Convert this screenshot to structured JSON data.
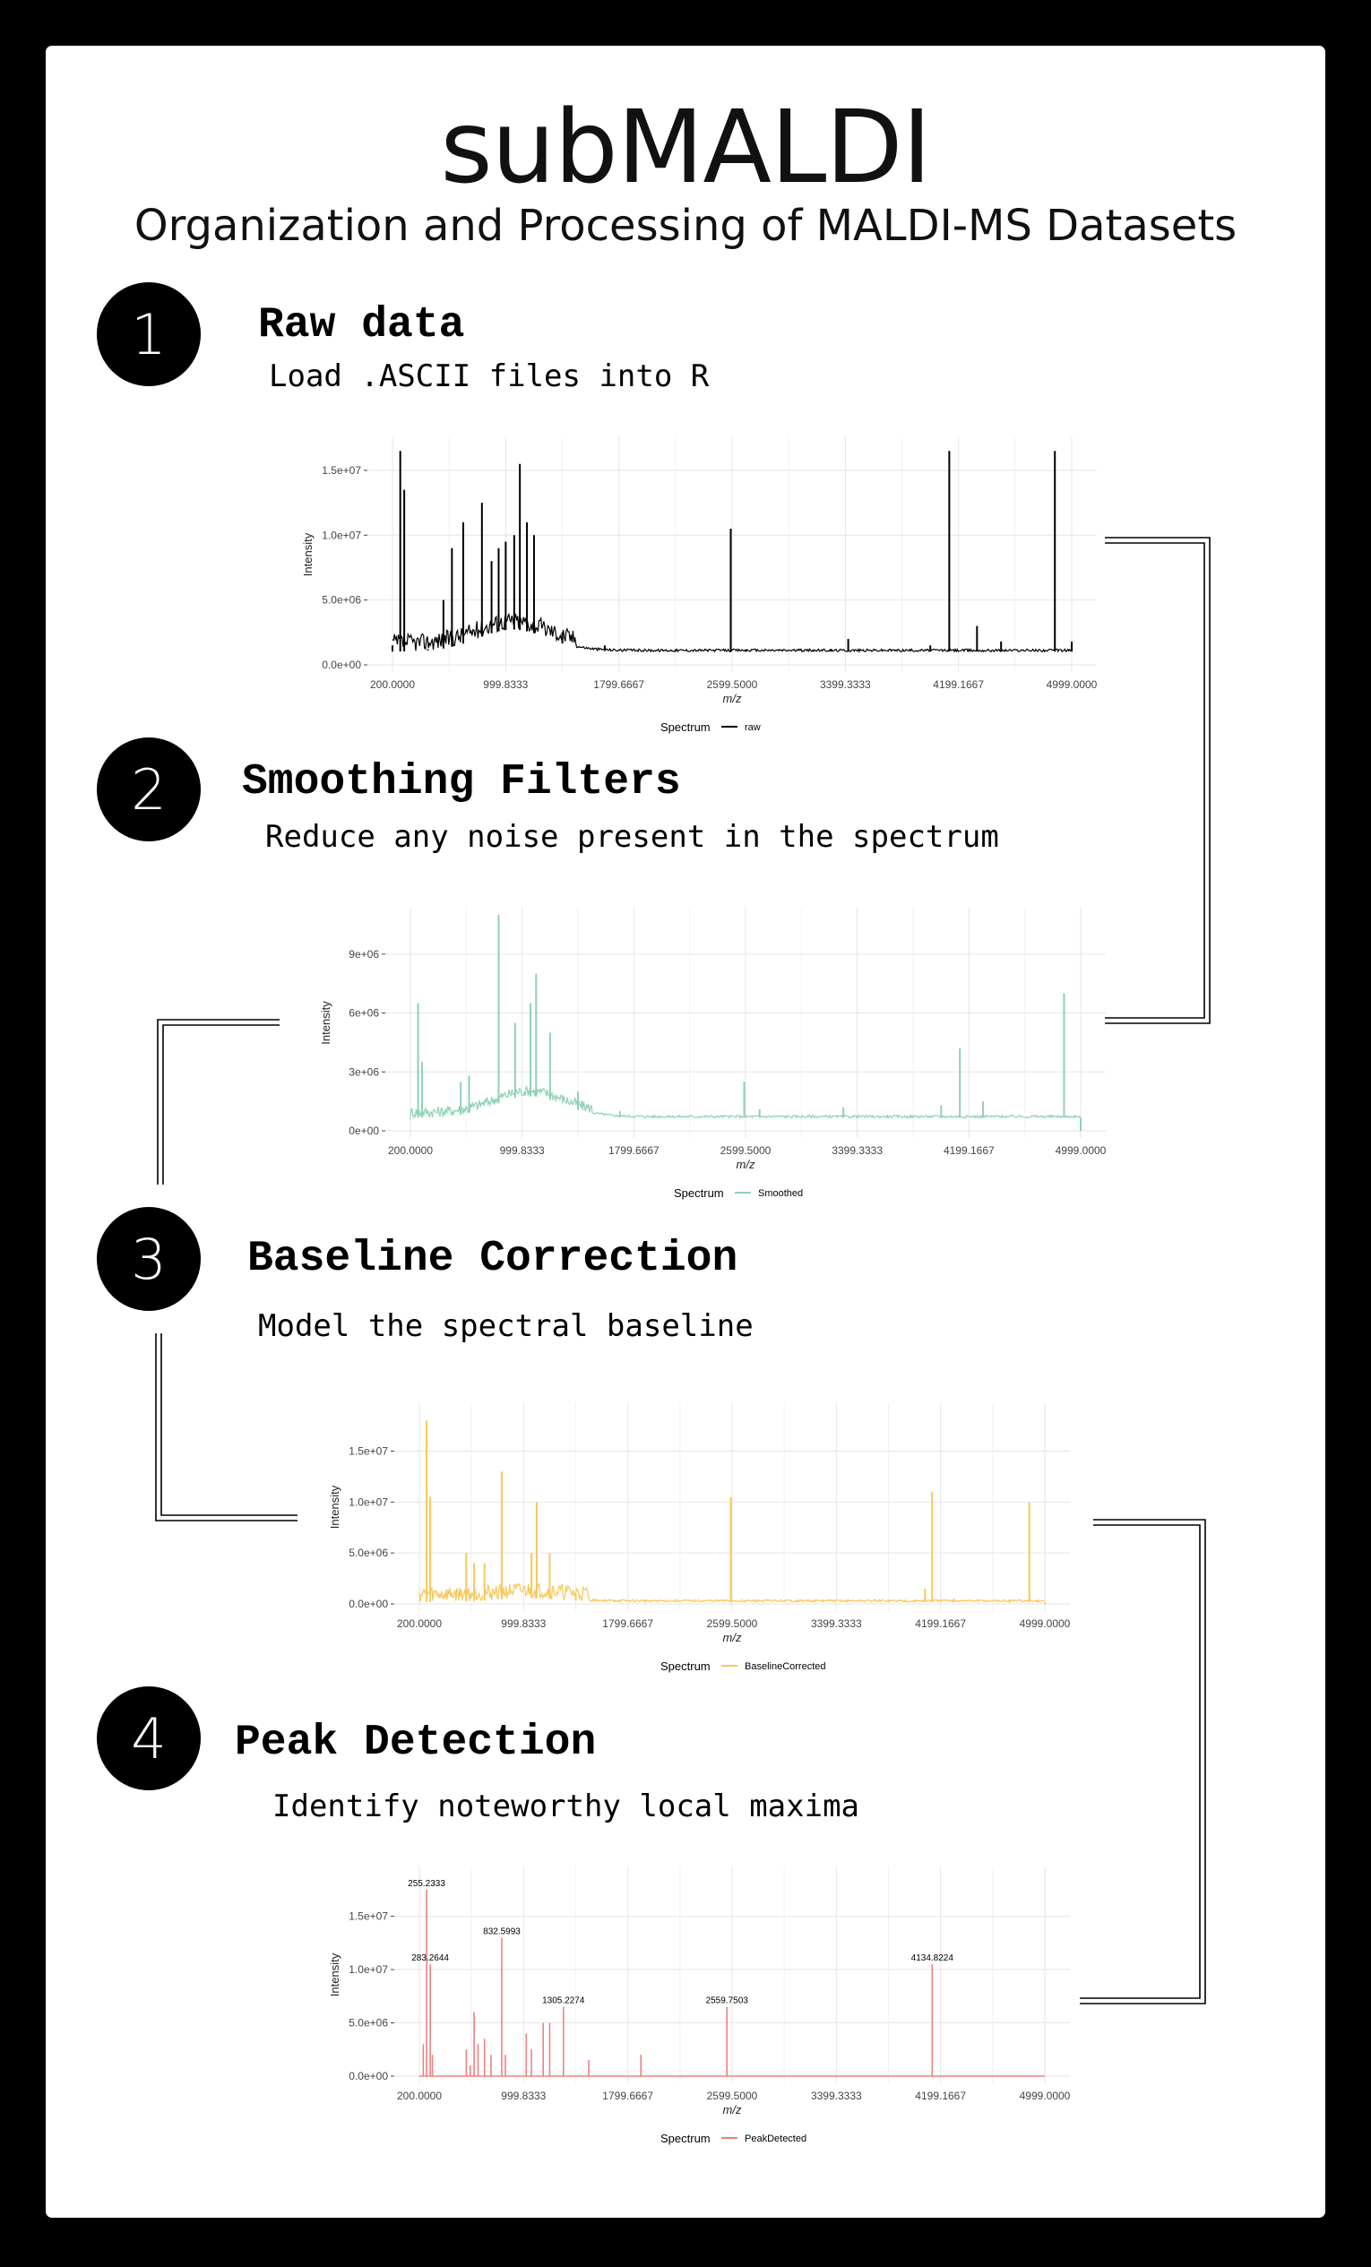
{
  "title": "subMALDI",
  "subtitle": "Organization and Processing of MALDI-MS Datasets",
  "steps": [
    {
      "number": "1",
      "heading": "Raw data",
      "description": "Load .ASCII files into R"
    },
    {
      "number": "2",
      "heading": "Smoothing Filters",
      "description": "Reduce any noise present in the spectrum"
    },
    {
      "number": "3",
      "heading": "Baseline Correction",
      "description": "Model the spectral baseline"
    },
    {
      "number": "4",
      "heading": "Peak Detection",
      "description": "Identify noteworthy local maxima"
    }
  ],
  "chart_data": [
    {
      "type": "line",
      "xlabel": "m/z",
      "ylabel": "Intensity",
      "xlim": [
        200,
        4999
      ],
      "ylim": [
        0,
        17000000
      ],
      "x_ticks": [
        "200.0000",
        "999.8333",
        "1799.6667",
        "2599.5000",
        "3399.3333",
        "4199.1667",
        "4999.0000"
      ],
      "y_ticks": [
        {
          "value": 0,
          "label": "0.0e+00"
        },
        {
          "value": 5000000,
          "label": "5.0e+06"
        },
        {
          "value": 10000000,
          "label": "1.0e+07"
        },
        {
          "value": 15000000,
          "label": "1.5e+07"
        }
      ],
      "legend_title": "Spectrum",
      "legend_position": "bottom",
      "series": [
        {
          "name": "raw",
          "color": "#000000",
          "points": [
            [
              200,
              1500000
            ],
            [
              255,
              16500000
            ],
            [
              283,
              13500000
            ],
            [
              450,
              1200000
            ],
            [
              560,
              5000000
            ],
            [
              620,
              9000000
            ],
            [
              700,
              11000000
            ],
            [
              832,
              12500000
            ],
            [
              900,
              8000000
            ],
            [
              950,
              9000000
            ],
            [
              1000,
              9500000
            ],
            [
              1060,
              10000000
            ],
            [
              1100,
              15500000
            ],
            [
              1150,
              11000000
            ],
            [
              1200,
              10000000
            ],
            [
              1400,
              2500000
            ],
            [
              1700,
              1500000
            ],
            [
              2200,
              1200000
            ],
            [
              2590,
              10500000
            ],
            [
              2700,
              1200000
            ],
            [
              3300,
              1200000
            ],
            [
              3420,
              2000000
            ],
            [
              4000,
              1500000
            ],
            [
              4134,
              16500000
            ],
            [
              4330,
              3000000
            ],
            [
              4500,
              1800000
            ],
            [
              4880,
              16500000
            ],
            [
              4999,
              1800000
            ]
          ]
        }
      ]
    },
    {
      "type": "line",
      "xlabel": "m/z",
      "ylabel": "Intensity",
      "xlim": [
        200,
        4999
      ],
      "ylim": [
        0,
        11000000
      ],
      "x_ticks": [
        "200.0000",
        "999.8333",
        "1799.6667",
        "2599.5000",
        "3399.3333",
        "4199.1667",
        "4999.0000"
      ],
      "y_ticks": [
        {
          "value": 0,
          "label": "0e+00"
        },
        {
          "value": 3000000,
          "label": "3e+06"
        },
        {
          "value": 6000000,
          "label": "6e+06"
        },
        {
          "value": 9000000,
          "label": "9e+06"
        }
      ],
      "legend_title": "Spectrum",
      "legend_position": "bottom",
      "series": [
        {
          "name": "Smoothed",
          "color": "#8fd1b4",
          "points": [
            [
              200,
              600000
            ],
            [
              255,
              6500000
            ],
            [
              283,
              3500000
            ],
            [
              560,
              2500000
            ],
            [
              620,
              2800000
            ],
            [
              832,
              11000000
            ],
            [
              950,
              5500000
            ],
            [
              1060,
              6500000
            ],
            [
              1100,
              8000000
            ],
            [
              1200,
              5000000
            ],
            [
              1400,
              2000000
            ],
            [
              1700,
              1000000
            ],
            [
              2590,
              2500000
            ],
            [
              2700,
              1100000
            ],
            [
              3300,
              1200000
            ],
            [
              4000,
              1300000
            ],
            [
              4134,
              4200000
            ],
            [
              4300,
              1500000
            ],
            [
              4880,
              7000000
            ],
            [
              4999,
              0
            ]
          ]
        }
      ]
    },
    {
      "type": "line",
      "xlabel": "m/z",
      "ylabel": "Intensity",
      "xlim": [
        200,
        4999
      ],
      "ylim": [
        0,
        19000000
      ],
      "x_ticks": [
        "200.0000",
        "999.8333",
        "1799.6667",
        "2599.5000",
        "3399.3333",
        "4199.1667",
        "4999.0000"
      ],
      "y_ticks": [
        {
          "value": 0,
          "label": "0.0e+00"
        },
        {
          "value": 5000000,
          "label": "5.0e+06"
        },
        {
          "value": 10000000,
          "label": "1.0e+07"
        },
        {
          "value": 15000000,
          "label": "1.5e+07"
        }
      ],
      "legend_title": "Spectrum",
      "legend_position": "bottom",
      "series": [
        {
          "name": "BaselineCorrected",
          "color": "#f8c95a",
          "points": [
            [
              200,
              200000
            ],
            [
              255,
              18000000
            ],
            [
              283,
              10500000
            ],
            [
              560,
              5000000
            ],
            [
              620,
              4000000
            ],
            [
              700,
              4000000
            ],
            [
              832,
              13000000
            ],
            [
              1060,
              5000000
            ],
            [
              1100,
              10000000
            ],
            [
              1200,
              5000000
            ],
            [
              1400,
              1000000
            ],
            [
              1700,
              400000
            ],
            [
              2590,
              10500000
            ],
            [
              2700,
              300000
            ],
            [
              3300,
              400000
            ],
            [
              4000,
              400000
            ],
            [
              4080,
              1500000
            ],
            [
              4134,
              11000000
            ],
            [
              4300,
              500000
            ],
            [
              4880,
              10000000
            ],
            [
              4999,
              0
            ]
          ]
        }
      ]
    },
    {
      "type": "line",
      "xlabel": "m/z",
      "ylabel": "Intensity",
      "xlim": [
        200,
        4999
      ],
      "ylim": [
        0,
        19000000
      ],
      "x_ticks": [
        "200.0000",
        "999.8333",
        "1799.6667",
        "2599.5000",
        "3399.3333",
        "4199.1667",
        "4999.0000"
      ],
      "y_ticks": [
        {
          "value": 0,
          "label": "0.0e+00"
        },
        {
          "value": 5000000,
          "label": "5.0e+06"
        },
        {
          "value": 10000000,
          "label": "1.0e+07"
        },
        {
          "value": 15000000,
          "label": "1.5e+07"
        }
      ],
      "legend_title": "Spectrum",
      "legend_position": "bottom",
      "series": [
        {
          "name": "PeakDetected",
          "color": "#f08080",
          "points": [
            [
              255.2333,
              17500000
            ],
            [
              283.2644,
              10500000
            ],
            [
              832.5993,
              13000000
            ],
            [
              1305.2274,
              6500000
            ],
            [
              2559.7503,
              6500000
            ],
            [
              4134.8224,
              10500000
            ],
            [
              230,
              3000000
            ],
            [
              300,
              2000000
            ],
            [
              560,
              2500000
            ],
            [
              590,
              1000000
            ],
            [
              620,
              6000000
            ],
            [
              650,
              3000000
            ],
            [
              700,
              3500000
            ],
            [
              750,
              2000000
            ],
            [
              860,
              2000000
            ],
            [
              1020,
              4000000
            ],
            [
              1060,
              2500000
            ],
            [
              1150,
              5000000
            ],
            [
              1200,
              5000000
            ],
            [
              1500,
              1500000
            ],
            [
              1900,
              2000000
            ]
          ]
        }
      ],
      "peak_labels": [
        {
          "x": 255.2333,
          "y": 17500000,
          "label": "255.2333"
        },
        {
          "x": 283.2644,
          "y": 10500000,
          "label": "283.2644"
        },
        {
          "x": 832.5993,
          "y": 13000000,
          "label": "832.5993"
        },
        {
          "x": 1305.2274,
          "y": 6500000,
          "label": "1305.2274"
        },
        {
          "x": 2559.7503,
          "y": 6500000,
          "label": "2559.7503"
        },
        {
          "x": 4134.8224,
          "y": 10500000,
          "label": "4134.8224"
        }
      ]
    }
  ]
}
